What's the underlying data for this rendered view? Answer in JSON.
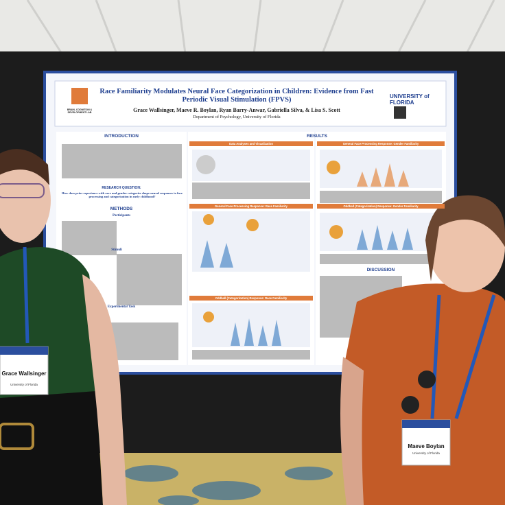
{
  "poster": {
    "title": "Race Familiarity Modulates Neural Face Categorization in Children: Evidence from Fast Periodic Visual Stimulation (FPVS)",
    "authors": "Grace Wallsinger, Maeve R. Boylan, Ryan Barry-Anwar, Gabriella Silva, & Lisa S. Scott",
    "department": "Department of Psychology, University of Florida",
    "lab": "BRAIN, COGNITION & DEVELOPMENT LAB",
    "university": "UNIVERSITY of FLORIDA",
    "sections": {
      "introduction": "INTRODUCTION",
      "results": "RESULTS",
      "research_question": "RESEARCH QUESTION:",
      "research_question_text": "How does prior experience with race and gender categories shape neural responses to face processing and categorization in early childhood?",
      "methods": "METHODS",
      "participants": "Participants",
      "stimuli": "Stimuli",
      "experimental_task": "Experimental Task",
      "discussion": "DISCUSSION"
    },
    "panels": [
      "Data Analyses and Visualization",
      "General Face Processing Response: Gender Familiarity",
      "General Face Processing Response: Race Familiarity",
      "Oddball (Categorization) Response: Gender Familiarity",
      "Oddball (Categorization) Response: Race Familiarity"
    ]
  },
  "badges": [
    {
      "name": "Grace Wallsinger",
      "affiliation": "University of Florida"
    },
    {
      "name": "Maeve Boylan",
      "affiliation": "University of Florida"
    }
  ]
}
